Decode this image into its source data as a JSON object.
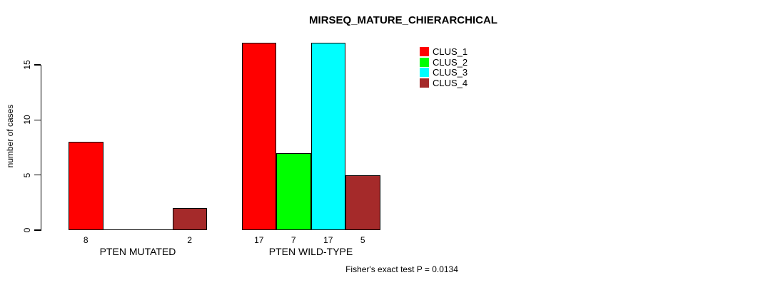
{
  "title": "MIRSEQ_MATURE_CHIERARCHICAL",
  "annotation": "Fisher's exact test P = 0.0134",
  "chart_data": {
    "type": "bar",
    "title": "MIRSEQ_MATURE_CHIERARCHICAL",
    "ylabel": "number of cases",
    "xlabel": "",
    "categories": [
      "PTEN MUTATED",
      "PTEN WILD-TYPE"
    ],
    "series": [
      {
        "name": "CLUS_1",
        "color": "#ff0000",
        "values": [
          8,
          17
        ]
      },
      {
        "name": "CLUS_2",
        "color": "#00ff00",
        "values": [
          0,
          7
        ]
      },
      {
        "name": "CLUS_3",
        "color": "#00ffff",
        "values": [
          0,
          17
        ]
      },
      {
        "name": "CLUS_4",
        "color": "#a52a2a",
        "values": [
          2,
          5
        ]
      }
    ],
    "bar_value_labels": {
      "PTEN MUTATED": [
        "8",
        "",
        "",
        "2"
      ],
      "PTEN WILD-TYPE": [
        "17",
        "7",
        "17",
        "5"
      ]
    },
    "yticks": [
      0,
      5,
      10,
      15
    ],
    "ylim": [
      0,
      17
    ],
    "grid": false,
    "legend": {
      "position": "top-right",
      "entries": [
        "CLUS_1",
        "CLUS_2",
        "CLUS_3",
        "CLUS_4"
      ]
    },
    "annotation": "Fisher's exact test P = 0.0134"
  }
}
